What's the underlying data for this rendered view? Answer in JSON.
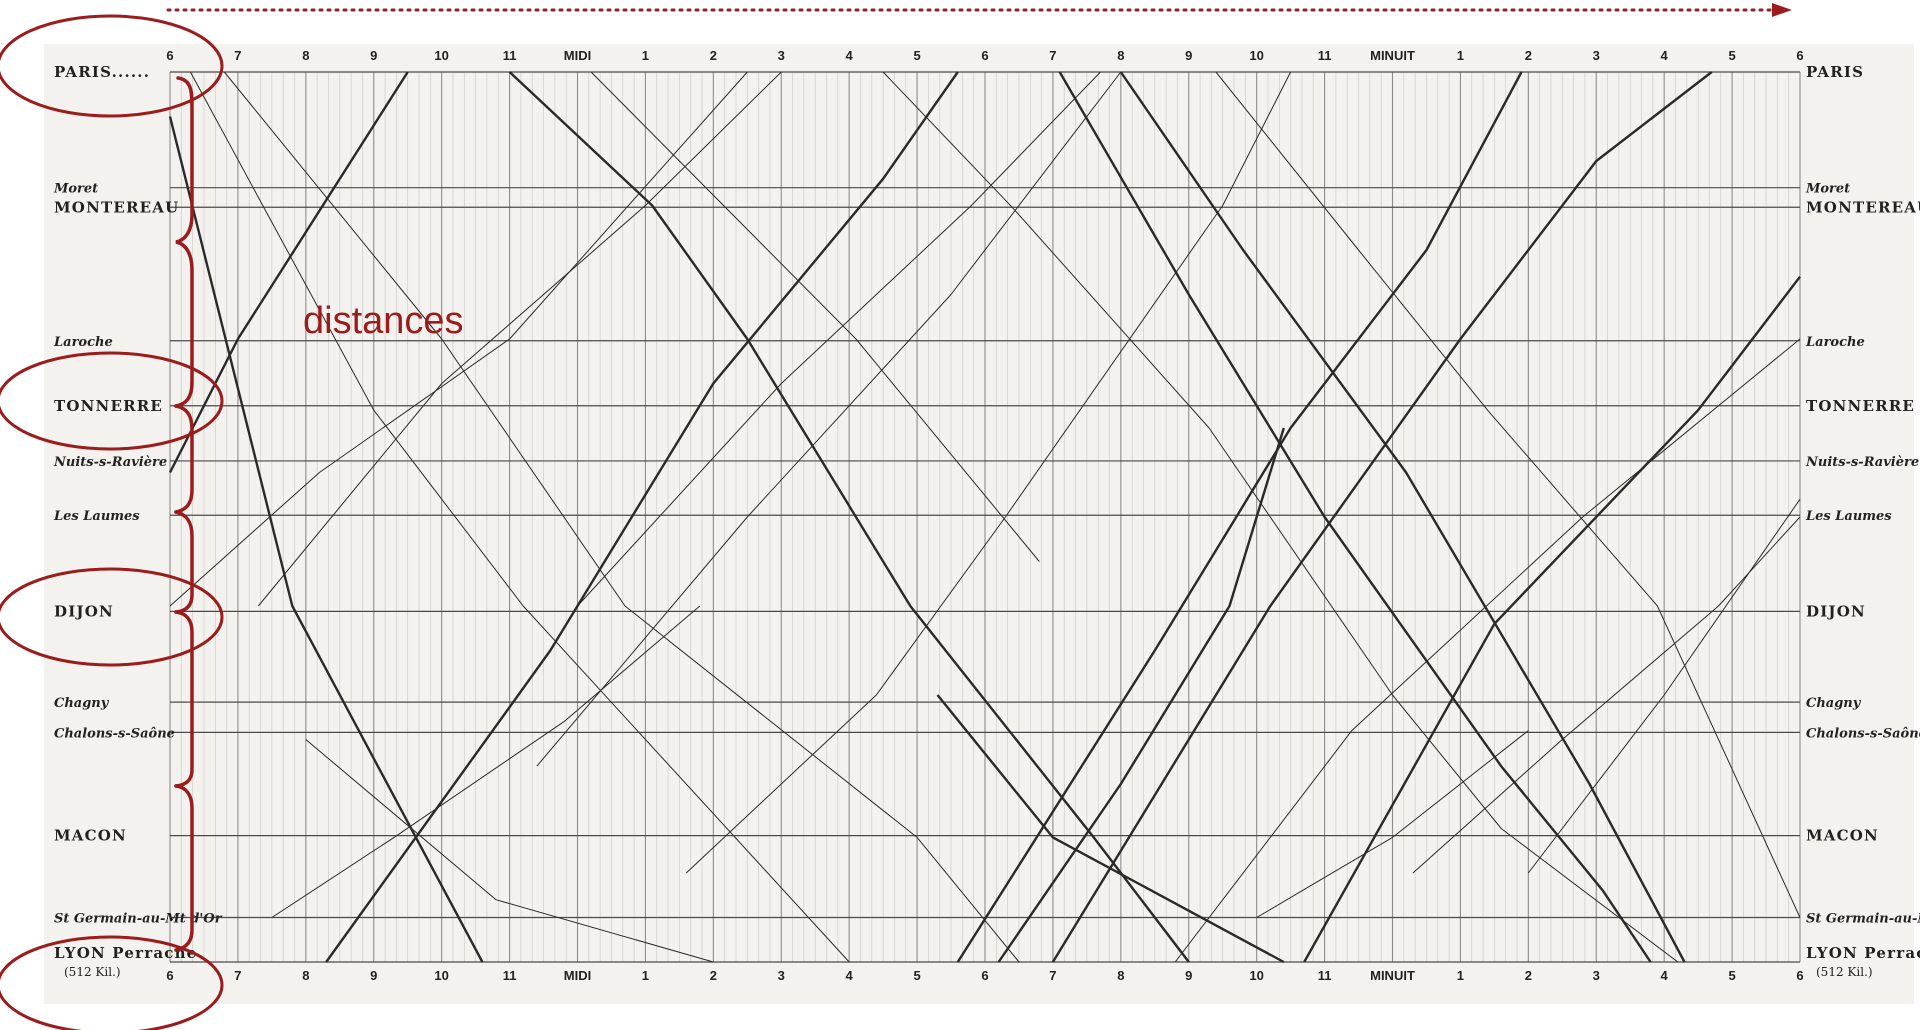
{
  "annotation": {
    "text": "distances",
    "color": "#9b1c1c"
  },
  "colors": {
    "line": "#2a2a2a",
    "paper": "#f4f2ee",
    "annotation": "#9b1c1c"
  },
  "chart_data": {
    "type": "line",
    "title": "",
    "time_range": [
      6,
      30
    ],
    "hour_labels": [
      "6",
      "7",
      "8",
      "9",
      "10",
      "11",
      "MIDI",
      "1",
      "2",
      "3",
      "4",
      "5",
      "6",
      "7",
      "8",
      "9",
      "10",
      "11",
      "MINUIT",
      "1",
      "2",
      "3",
      "4",
      "5",
      "6"
    ],
    "stations": [
      {
        "id": "paris",
        "label": "PARIS",
        "left_label": "PARIS......",
        "right_label": "PARIS",
        "pos": 0.0,
        "style": "caps"
      },
      {
        "id": "moret",
        "label": "Moret",
        "pos": 0.13,
        "style": "italic"
      },
      {
        "id": "montereau",
        "label": "MONTEREAU",
        "pos": 0.152,
        "style": "caps"
      },
      {
        "id": "laroche",
        "label": "Laroche",
        "pos": 0.302,
        "style": "italic"
      },
      {
        "id": "tonnerre",
        "label": "TONNERRE",
        "pos": 0.375,
        "style": "caps"
      },
      {
        "id": "nuits",
        "label": "Nuits-s-Ravière",
        "pos": 0.437,
        "style": "italic"
      },
      {
        "id": "leslaumes",
        "label": "Les Laumes",
        "pos": 0.498,
        "style": "italic"
      },
      {
        "id": "dijon",
        "label": "DIJON",
        "pos": 0.606,
        "style": "caps"
      },
      {
        "id": "chagny",
        "label": "Chagny",
        "pos": 0.708,
        "style": "italic"
      },
      {
        "id": "chalons",
        "label": "Chalons-s-Saône",
        "pos": 0.742,
        "style": "italic"
      },
      {
        "id": "macon",
        "label": "MACON",
        "pos": 0.858,
        "style": "caps"
      },
      {
        "id": "stgermain",
        "label": "St Germain-au-Mt d'Or",
        "pos": 0.95,
        "style": "italic"
      },
      {
        "id": "lyon",
        "label": "LYON Perrache",
        "left_label": "LYON Perrache",
        "right_label": "LYON Perrache",
        "sublabel": "(512 Kil.)",
        "pos": 1.0,
        "style": "caps"
      }
    ],
    "series": [
      {
        "direction": "south",
        "bold": true,
        "points": [
          [
            6.0,
            0.05
          ],
          [
            7.8,
            0.6
          ],
          [
            10.6,
            1.0
          ]
        ]
      },
      {
        "direction": "south",
        "bold": false,
        "points": [
          [
            6.3,
            0.0
          ],
          [
            9.0,
            0.38
          ],
          [
            11.2,
            0.6
          ],
          [
            16.0,
            1.0
          ]
        ]
      },
      {
        "direction": "south",
        "bold": false,
        "points": [
          [
            6.8,
            0.0
          ],
          [
            10.0,
            0.3
          ],
          [
            12.7,
            0.6
          ],
          [
            17.0,
            0.86
          ],
          [
            18.5,
            1.0
          ]
        ]
      },
      {
        "direction": "south",
        "bold": true,
        "points": [
          [
            11.0,
            0.0
          ],
          [
            13.1,
            0.15
          ],
          [
            14.5,
            0.3
          ],
          [
            16.9,
            0.6
          ],
          [
            19.6,
            0.86
          ],
          [
            21.0,
            1.0
          ]
        ]
      },
      {
        "direction": "south",
        "bold": true,
        "points": [
          [
            19.1,
            0.0
          ],
          [
            21.0,
            0.25
          ],
          [
            23.0,
            0.5
          ],
          [
            25.6,
            0.78
          ],
          [
            27.1,
            0.92
          ],
          [
            27.8,
            1.0
          ]
        ]
      },
      {
        "direction": "south",
        "bold": true,
        "points": [
          [
            20.0,
            0.0
          ],
          [
            21.8,
            0.2
          ],
          [
            24.2,
            0.45
          ],
          [
            26.9,
            0.8
          ],
          [
            28.3,
            1.0
          ]
        ]
      },
      {
        "direction": "south",
        "bold": false,
        "points": [
          [
            16.5,
            0.0
          ],
          [
            18.4,
            0.152
          ],
          [
            21.3,
            0.4
          ],
          [
            24.0,
            0.7
          ],
          [
            25.6,
            0.85
          ],
          [
            28.2,
            1.0
          ]
        ]
      },
      {
        "direction": "south",
        "bold": false,
        "points": [
          [
            21.4,
            0.0
          ],
          [
            23.5,
            0.2
          ],
          [
            25.4,
            0.38
          ],
          [
            27.9,
            0.6
          ],
          [
            30.0,
            0.95
          ]
        ]
      },
      {
        "direction": "south",
        "bold": true,
        "points": [
          [
            17.3,
            0.7
          ],
          [
            19.0,
            0.86
          ],
          [
            22.4,
            1.0
          ]
        ]
      },
      {
        "direction": "south",
        "bold": false,
        "points": [
          [
            12.2,
            0.0
          ],
          [
            16.1,
            0.3
          ],
          [
            18.8,
            0.55
          ]
        ]
      },
      {
        "direction": "south",
        "bold": false,
        "points": [
          [
            8.0,
            0.75
          ],
          [
            10.8,
            0.93
          ],
          [
            14.0,
            1.0
          ]
        ]
      },
      {
        "direction": "north",
        "bold": true,
        "points": [
          [
            6.0,
            0.45
          ],
          [
            7.0,
            0.3
          ],
          [
            9.5,
            0.0
          ]
        ]
      },
      {
        "direction": "north",
        "bold": true,
        "points": [
          [
            8.3,
            1.0
          ],
          [
            11.6,
            0.65
          ],
          [
            14.0,
            0.35
          ],
          [
            16.5,
            0.12
          ],
          [
            17.6,
            0.0
          ]
        ]
      },
      {
        "direction": "north",
        "bold": true,
        "points": [
          [
            17.6,
            1.0
          ],
          [
            20.5,
            0.65
          ],
          [
            22.5,
            0.4
          ],
          [
            24.5,
            0.2
          ],
          [
            25.9,
            0.0
          ]
        ]
      },
      {
        "direction": "north",
        "bold": true,
        "points": [
          [
            19.0,
            1.0
          ],
          [
            22.2,
            0.6
          ],
          [
            25.0,
            0.3
          ],
          [
            27.0,
            0.1
          ],
          [
            28.7,
            0.0
          ]
        ]
      },
      {
        "direction": "north",
        "bold": true,
        "points": [
          [
            22.7,
            1.0
          ],
          [
            25.5,
            0.62
          ],
          [
            28.5,
            0.38
          ],
          [
            30.0,
            0.23
          ]
        ]
      },
      {
        "direction": "north",
        "bold": true,
        "points": [
          [
            18.2,
            1.0
          ],
          [
            20.0,
            0.8
          ],
          [
            21.6,
            0.6
          ],
          [
            22.4,
            0.4
          ]
        ]
      },
      {
        "direction": "north",
        "bold": false,
        "points": [
          [
            11.4,
            0.78
          ],
          [
            14.5,
            0.5
          ],
          [
            17.5,
            0.25
          ],
          [
            20.0,
            0.0
          ]
        ]
      },
      {
        "direction": "north",
        "bold": false,
        "points": [
          [
            7.3,
            0.6
          ],
          [
            10.0,
            0.35
          ],
          [
            13.0,
            0.15
          ],
          [
            15.0,
            0.0
          ]
        ]
      },
      {
        "direction": "north",
        "bold": false,
        "points": [
          [
            12.0,
            0.6
          ],
          [
            15.0,
            0.35
          ],
          [
            17.8,
            0.15
          ],
          [
            19.7,
            0.0
          ]
        ]
      },
      {
        "direction": "north",
        "bold": false,
        "points": [
          [
            20.8,
            1.0
          ],
          [
            23.4,
            0.74
          ],
          [
            26.8,
            0.5
          ],
          [
            30.0,
            0.3
          ]
        ]
      },
      {
        "direction": "north",
        "bold": false,
        "points": [
          [
            26.0,
            0.9
          ],
          [
            28.0,
            0.7
          ],
          [
            30.0,
            0.48
          ]
        ]
      },
      {
        "direction": "north",
        "bold": false,
        "points": [
          [
            6.0,
            0.6
          ],
          [
            8.2,
            0.45
          ],
          [
            11.0,
            0.3
          ],
          [
            14.5,
            0.0
          ]
        ]
      },
      {
        "direction": "north",
        "bold": false,
        "points": [
          [
            13.6,
            0.9
          ],
          [
            16.4,
            0.7
          ],
          [
            18.3,
            0.5
          ],
          [
            21.5,
            0.15
          ],
          [
            22.5,
            0.0
          ]
        ]
      },
      {
        "direction": "north",
        "bold": false,
        "points": [
          [
            24.3,
            0.9
          ],
          [
            26.5,
            0.75
          ],
          [
            28.8,
            0.6
          ],
          [
            30.0,
            0.5
          ]
        ]
      },
      {
        "direction": "north",
        "bold": false,
        "points": [
          [
            7.5,
            0.95
          ],
          [
            9.3,
            0.86
          ],
          [
            11.8,
            0.73
          ],
          [
            13.8,
            0.6
          ]
        ]
      },
      {
        "direction": "north",
        "bold": false,
        "points": [
          [
            22.0,
            0.95
          ],
          [
            24.0,
            0.86
          ],
          [
            26.0,
            0.74
          ]
        ]
      }
    ]
  }
}
